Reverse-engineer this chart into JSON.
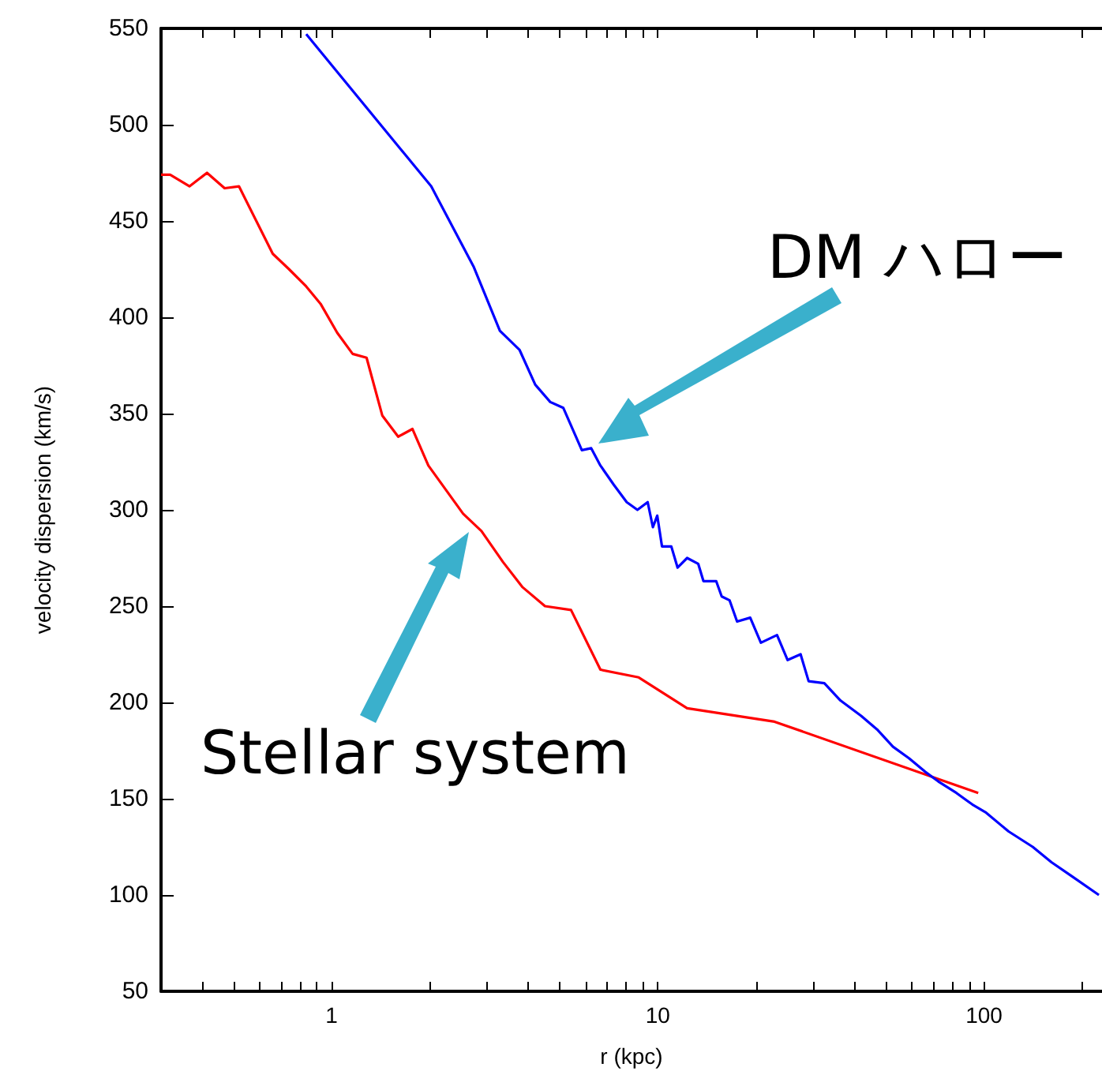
{
  "chart_data": {
    "type": "line",
    "xlabel": "r (kpc)",
    "ylabel": "velocity dispersion (km/s)",
    "log": "x",
    "xlim": [
      0.3,
      230
    ],
    "ylim": [
      50,
      550
    ],
    "xticks": [
      {
        "value": 0.4,
        "label": null
      },
      {
        "value": 0.5,
        "label": null
      },
      {
        "value": 0.6,
        "label": null
      },
      {
        "value": 0.7,
        "label": null
      },
      {
        "value": 0.8,
        "label": null
      },
      {
        "value": 0.9,
        "label": null
      },
      1,
      {
        "value": 2,
        "label": null
      },
      {
        "value": 3,
        "label": null
      },
      {
        "value": 4,
        "label": null
      },
      {
        "value": 5,
        "label": null
      },
      {
        "value": 6,
        "label": null
      },
      {
        "value": 7,
        "label": null
      },
      {
        "value": 8,
        "label": null
      },
      {
        "value": 9,
        "label": null
      },
      10,
      {
        "value": 20,
        "label": null
      },
      {
        "value": 30,
        "label": null
      },
      {
        "value": 40,
        "label": null
      },
      {
        "value": 50,
        "label": null
      },
      {
        "value": 60,
        "label": null
      },
      {
        "value": 70,
        "label": null
      },
      {
        "value": 80,
        "label": null
      },
      {
        "value": 90,
        "label": null
      },
      100,
      {
        "value": 200,
        "label": null
      }
    ],
    "yticks": [
      50,
      100,
      150,
      200,
      250,
      300,
      350,
      400,
      450,
      500,
      550
    ],
    "grid": false,
    "marker": "none",
    "line_style": "solid",
    "annotations": [
      "DM ハロー",
      "Stellar system"
    ],
    "series": [
      {
        "color": "#ff0000",
        "x": [
          0.3,
          0.32,
          0.367,
          0.415,
          0.47,
          0.52,
          0.66,
          0.74,
          0.836,
          0.925,
          1.04,
          1.16,
          1.28,
          1.43,
          1.6,
          1.77,
          1.98,
          2.53,
          2.88,
          3.35,
          3.84,
          4.51,
          5.42,
          6.67,
          8.74,
          12.3,
          22.8,
          96
        ],
        "values": [
          474,
          474,
          468,
          475,
          467,
          468,
          433,
          425,
          416,
          407,
          392,
          381,
          379,
          349,
          338,
          342,
          323,
          298,
          289,
          273,
          260,
          250,
          248,
          217,
          213,
          197,
          190,
          153
        ]
      },
      {
        "color": "#0000ff",
        "x": [
          0.836,
          2.02,
          2.73,
          3.28,
          3.77,
          4.21,
          4.68,
          5.13,
          5.85,
          6.25,
          6.67,
          7.33,
          8.03,
          8.66,
          9.31,
          9.66,
          9.96,
          10.3,
          11.0,
          11.5,
          12.3,
          13.3,
          13.8,
          15.1,
          15.7,
          16.6,
          17.5,
          19.2,
          20.7,
          23.2,
          25,
          27.4,
          29,
          32.4,
          36.3,
          42,
          47,
          52.6,
          58.9,
          66,
          72.4,
          82.3,
          92.1,
          101,
          119,
          141,
          161,
          185,
          225
        ],
        "values": [
          547,
          468,
          426,
          393,
          383,
          365,
          356,
          353,
          331,
          332,
          323,
          313,
          304,
          300,
          304,
          291,
          297,
          281,
          281,
          270,
          275,
          272,
          263,
          263,
          255,
          253,
          242,
          244,
          231,
          235,
          222,
          225,
          211,
          210,
          201,
          193,
          186,
          177,
          171,
          164,
          159,
          153,
          147,
          143,
          133,
          125,
          117,
          110,
          100
        ]
      }
    ]
  }
}
